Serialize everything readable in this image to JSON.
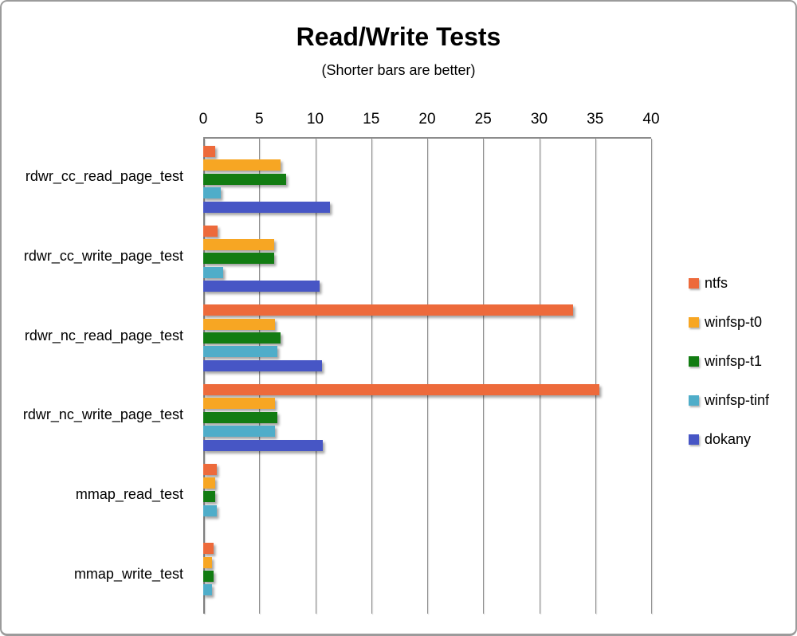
{
  "chart_data": {
    "type": "bar",
    "orientation": "horizontal",
    "title": "Read/Write Tests",
    "subtitle": "(Shorter bars are better)",
    "categories": [
      "rdwr_cc_read_page_test",
      "rdwr_cc_write_page_test",
      "rdwr_nc_read_page_test",
      "rdwr_nc_write_page_test",
      "mmap_read_test",
      "mmap_write_test"
    ],
    "series": [
      {
        "name": "ntfs",
        "color": "#ED6A3B",
        "values": [
          1.1,
          1.3,
          33.0,
          35.4,
          1.2,
          0.9
        ]
      },
      {
        "name": "winfsp-t0",
        "color": "#F7A623",
        "values": [
          6.9,
          6.3,
          6.4,
          6.4,
          1.1,
          0.8
        ]
      },
      {
        "name": "winfsp-t1",
        "color": "#127C12",
        "values": [
          7.4,
          6.3,
          6.9,
          6.6,
          1.1,
          0.9
        ]
      },
      {
        "name": "winfsp-tinf",
        "color": "#4FADC9",
        "values": [
          1.6,
          1.8,
          6.6,
          6.4,
          1.2,
          0.8
        ]
      },
      {
        "name": "dokany",
        "color": "#4756C5",
        "values": [
          11.3,
          10.4,
          10.6,
          10.7,
          null,
          null
        ]
      }
    ],
    "x_axis": {
      "min": 0,
      "max": 40,
      "ticks": [
        0,
        5,
        10,
        15,
        20,
        25,
        30,
        35,
        40
      ],
      "position": "top"
    },
    "grid": true,
    "legend_position": "right",
    "grid_color": "#8f8f8f"
  }
}
